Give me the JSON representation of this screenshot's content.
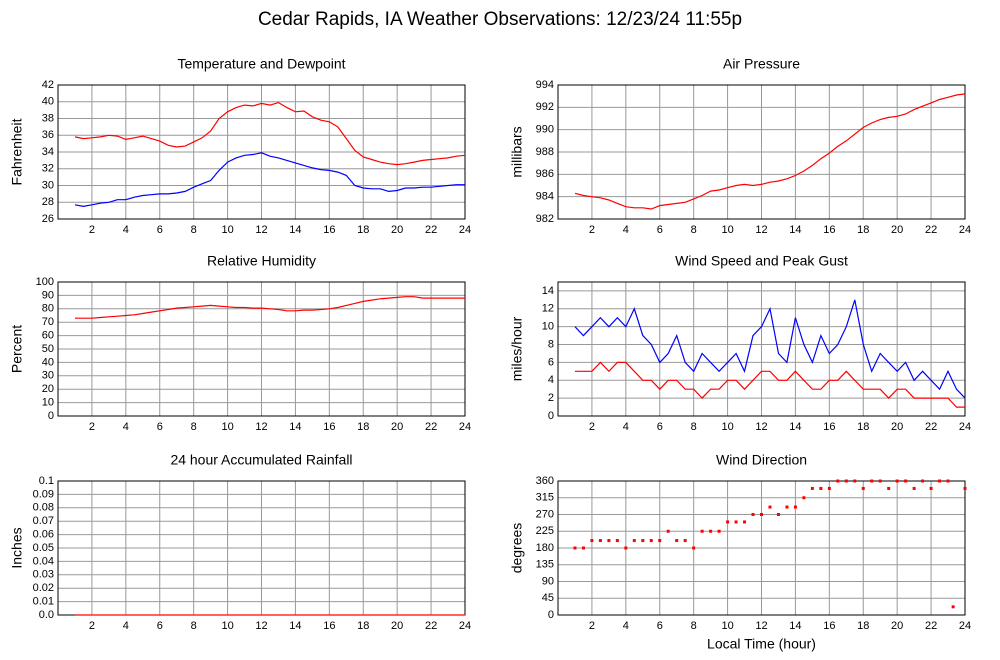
{
  "title": "Cedar Rapids, IA Weather Observations: 12/23/24 11:55p",
  "chart_data": [
    {
      "type": "line",
      "title": "Temperature and Dewpoint",
      "ylabel": "Fahrenheit",
      "x": [
        1,
        1.5,
        2,
        2.5,
        3,
        3.5,
        4,
        4.5,
        5,
        5.5,
        6,
        6.5,
        7,
        7.5,
        8,
        8.5,
        9,
        9.5,
        10,
        10.5,
        11,
        11.5,
        12,
        12.5,
        13,
        13.5,
        14,
        14.5,
        15,
        15.5,
        16,
        16.5,
        17,
        17.5,
        18,
        18.5,
        19,
        19.5,
        20,
        20.5,
        21,
        21.5,
        22,
        22.5,
        23,
        23.5,
        24
      ],
      "series": [
        {
          "color": "#ff0000",
          "values": [
            35.8,
            35.6,
            35.7,
            35.8,
            36.0,
            35.9,
            35.5,
            35.7,
            35.9,
            35.6,
            35.3,
            34.8,
            34.6,
            34.7,
            35.2,
            35.7,
            36.5,
            38.0,
            38.8,
            39.3,
            39.6,
            39.5,
            39.8,
            39.6,
            39.9,
            39.3,
            38.8,
            38.9,
            38.2,
            37.8,
            37.6,
            37.0,
            35.6,
            34.2,
            33.4,
            33.1,
            32.8,
            32.6,
            32.5,
            32.6,
            32.8,
            33.0,
            33.1,
            33.2,
            33.3,
            33.5,
            33.6
          ]
        },
        {
          "color": "#0000ff",
          "values": [
            27.7,
            27.5,
            27.7,
            27.9,
            28.0,
            28.3,
            28.3,
            28.6,
            28.8,
            28.9,
            29.0,
            29.0,
            29.1,
            29.3,
            29.8,
            30.2,
            30.6,
            31.8,
            32.8,
            33.3,
            33.6,
            33.7,
            33.9,
            33.5,
            33.3,
            33.0,
            32.7,
            32.4,
            32.1,
            31.9,
            31.8,
            31.6,
            31.2,
            30.0,
            29.7,
            29.6,
            29.6,
            29.3,
            29.4,
            29.7,
            29.7,
            29.8,
            29.8,
            29.9,
            30.0,
            30.1,
            30.1
          ]
        }
      ],
      "xlim": [
        0,
        24
      ],
      "xticks": [
        2,
        4,
        6,
        8,
        10,
        12,
        14,
        16,
        18,
        20,
        22,
        24
      ],
      "ylim": [
        26,
        42
      ],
      "yticks": [
        26,
        28,
        30,
        32,
        34,
        36,
        38,
        40,
        42
      ],
      "grid": true
    },
    {
      "type": "line",
      "title": "Air Pressure",
      "ylabel": "millibars",
      "x": [
        1,
        1.5,
        2,
        2.5,
        3,
        3.5,
        4,
        4.5,
        5,
        5.5,
        6,
        6.5,
        7,
        7.5,
        8,
        8.5,
        9,
        9.5,
        10,
        10.5,
        11,
        11.5,
        12,
        12.5,
        13,
        13.5,
        14,
        14.5,
        15,
        15.5,
        16,
        16.5,
        17,
        17.5,
        18,
        18.5,
        19,
        19.5,
        20,
        20.5,
        21,
        21.5,
        22,
        22.5,
        23,
        23.5,
        24
      ],
      "series": [
        {
          "color": "#ff0000",
          "values": [
            984.3,
            984.1,
            984.0,
            983.9,
            983.7,
            983.4,
            983.1,
            983.0,
            983.0,
            982.9,
            983.2,
            983.3,
            983.4,
            983.5,
            983.8,
            984.1,
            984.5,
            984.6,
            984.8,
            985.0,
            985.1,
            985.0,
            985.1,
            985.3,
            985.4,
            985.6,
            985.9,
            986.3,
            986.8,
            987.4,
            987.9,
            988.5,
            989.0,
            989.6,
            990.2,
            990.6,
            990.9,
            991.1,
            991.2,
            991.4,
            991.8,
            992.1,
            992.4,
            992.7,
            992.9,
            993.1,
            993.2
          ]
        }
      ],
      "xlim": [
        0,
        24
      ],
      "xticks": [
        2,
        4,
        6,
        8,
        10,
        12,
        14,
        16,
        18,
        20,
        22,
        24
      ],
      "ylim": [
        982,
        994
      ],
      "yticks": [
        982,
        984,
        986,
        988,
        990,
        992,
        994
      ],
      "grid": true
    },
    {
      "type": "line",
      "title": "Relative Humidity",
      "ylabel": "Percent",
      "x": [
        1,
        1.5,
        2,
        2.5,
        3,
        3.5,
        4,
        4.5,
        5,
        5.5,
        6,
        6.5,
        7,
        7.5,
        8,
        8.5,
        9,
        9.5,
        10,
        10.5,
        11,
        11.5,
        12,
        12.5,
        13,
        13.5,
        14,
        14.5,
        15,
        15.5,
        16,
        16.5,
        17,
        17.5,
        18,
        18.5,
        19,
        19.5,
        20,
        20.5,
        21,
        21.5,
        22,
        22.5,
        23,
        23.5,
        24
      ],
      "series": [
        {
          "color": "#ff0000",
          "values": [
            73,
            73,
            73,
            73.5,
            74,
            74.5,
            75,
            75.5,
            76.5,
            77.5,
            78.5,
            79.5,
            80.5,
            81,
            81.5,
            82,
            82.5,
            82,
            81.5,
            81,
            81,
            80.5,
            80.5,
            80,
            79.5,
            78.5,
            78.5,
            79,
            79,
            79.5,
            80,
            81,
            82.5,
            84,
            85.5,
            86.5,
            87.5,
            88,
            88.5,
            89,
            89,
            88,
            88,
            88,
            88,
            88,
            88
          ]
        }
      ],
      "xlim": [
        0,
        24
      ],
      "xticks": [
        2,
        4,
        6,
        8,
        10,
        12,
        14,
        16,
        18,
        20,
        22,
        24
      ],
      "ylim": [
        0,
        100
      ],
      "yticks": [
        0,
        10,
        20,
        30,
        40,
        50,
        60,
        70,
        80,
        90,
        100
      ],
      "grid": true
    },
    {
      "type": "line",
      "title": "Wind Speed and Peak Gust",
      "ylabel": "miles/hour",
      "x": [
        1,
        1.5,
        2,
        2.5,
        3,
        3.5,
        4,
        4.5,
        5,
        5.5,
        6,
        6.5,
        7,
        7.5,
        8,
        8.5,
        9,
        9.5,
        10,
        10.5,
        11,
        11.5,
        12,
        12.5,
        13,
        13.5,
        14,
        14.5,
        15,
        15.5,
        16,
        16.5,
        17,
        17.5,
        18,
        18.5,
        19,
        19.5,
        20,
        20.5,
        21,
        21.5,
        22,
        22.5,
        23,
        23.5,
        24
      ],
      "series": [
        {
          "color": "#0000ff",
          "values": [
            10,
            9,
            10,
            11,
            10,
            11,
            10,
            12,
            9,
            8,
            6,
            7,
            9,
            6,
            5,
            7,
            6,
            5,
            6,
            7,
            5,
            9,
            10,
            12,
            7,
            6,
            11,
            8,
            6,
            9,
            7,
            8,
            10,
            13,
            8,
            5,
            7,
            6,
            5,
            6,
            4,
            5,
            4,
            3,
            5,
            3,
            2
          ]
        },
        {
          "color": "#ff0000",
          "values": [
            5,
            5,
            5,
            6,
            5,
            6,
            6,
            5,
            4,
            4,
            3,
            4,
            4,
            3,
            3,
            2,
            3,
            3,
            4,
            4,
            3,
            4,
            5,
            5,
            4,
            4,
            5,
            4,
            3,
            3,
            4,
            4,
            5,
            4,
            3,
            3,
            3,
            2,
            3,
            3,
            2,
            2,
            2,
            2,
            2,
            1,
            1
          ]
        }
      ],
      "xlim": [
        0,
        24
      ],
      "xticks": [
        2,
        4,
        6,
        8,
        10,
        12,
        14,
        16,
        18,
        20,
        22,
        24
      ],
      "ylim": [
        0,
        15
      ],
      "yticks": [
        0,
        2,
        4,
        6,
        8,
        10,
        12,
        14
      ],
      "grid": true
    },
    {
      "type": "line",
      "title": "24 hour Accumulated Rainfall",
      "ylabel": "Inches",
      "x": [
        1,
        24
      ],
      "series": [
        {
          "color": "#ff0000",
          "values": [
            0,
            0
          ]
        }
      ],
      "xlim": [
        0,
        24
      ],
      "xticks": [
        2,
        4,
        6,
        8,
        10,
        12,
        14,
        16,
        18,
        20,
        22,
        24
      ],
      "ylim": [
        0,
        0.1
      ],
      "yticks": [
        {
          "value": 0,
          "label": "0.0"
        },
        0.01,
        0.02,
        0.03,
        0.04,
        0.05,
        0.06,
        0.07,
        0.08,
        0.09,
        0.1
      ],
      "grid": true
    },
    {
      "type": "scatter",
      "title": "Wind Direction",
      "ylabel": "degrees",
      "xlabel": "Local Time (hour)",
      "x": [
        1,
        1.5,
        2,
        2.5,
        3,
        3.5,
        4,
        4.5,
        5,
        5.5,
        6,
        6.5,
        7,
        7.5,
        8,
        8.5,
        9,
        9.5,
        10,
        10.5,
        11,
        11.5,
        12,
        12.5,
        13,
        13.5,
        14,
        14.5,
        15,
        15.5,
        16,
        16.5,
        17,
        17.5,
        18,
        18.5,
        19,
        19.5,
        20,
        20.5,
        21,
        21.5,
        22,
        22.5,
        23,
        23.3,
        24
      ],
      "series": [
        {
          "color": "#ff0000",
          "values": [
            180,
            180,
            200,
            200,
            200,
            200,
            180,
            200,
            200,
            200,
            200,
            225,
            200,
            200,
            180,
            225,
            225,
            225,
            250,
            250,
            250,
            270,
            270,
            290,
            270,
            290,
            290,
            315,
            340,
            340,
            340,
            360,
            360,
            360,
            340,
            360,
            360,
            340,
            360,
            360,
            340,
            360,
            340,
            360,
            360,
            22,
            340
          ]
        }
      ],
      "xlim": [
        0,
        24
      ],
      "xticks": [
        2,
        4,
        6,
        8,
        10,
        12,
        14,
        16,
        18,
        20,
        22,
        24
      ],
      "ylim": [
        0,
        360
      ],
      "yticks": [
        0,
        45,
        90,
        135,
        180,
        225,
        270,
        315,
        360
      ],
      "grid": true
    }
  ]
}
